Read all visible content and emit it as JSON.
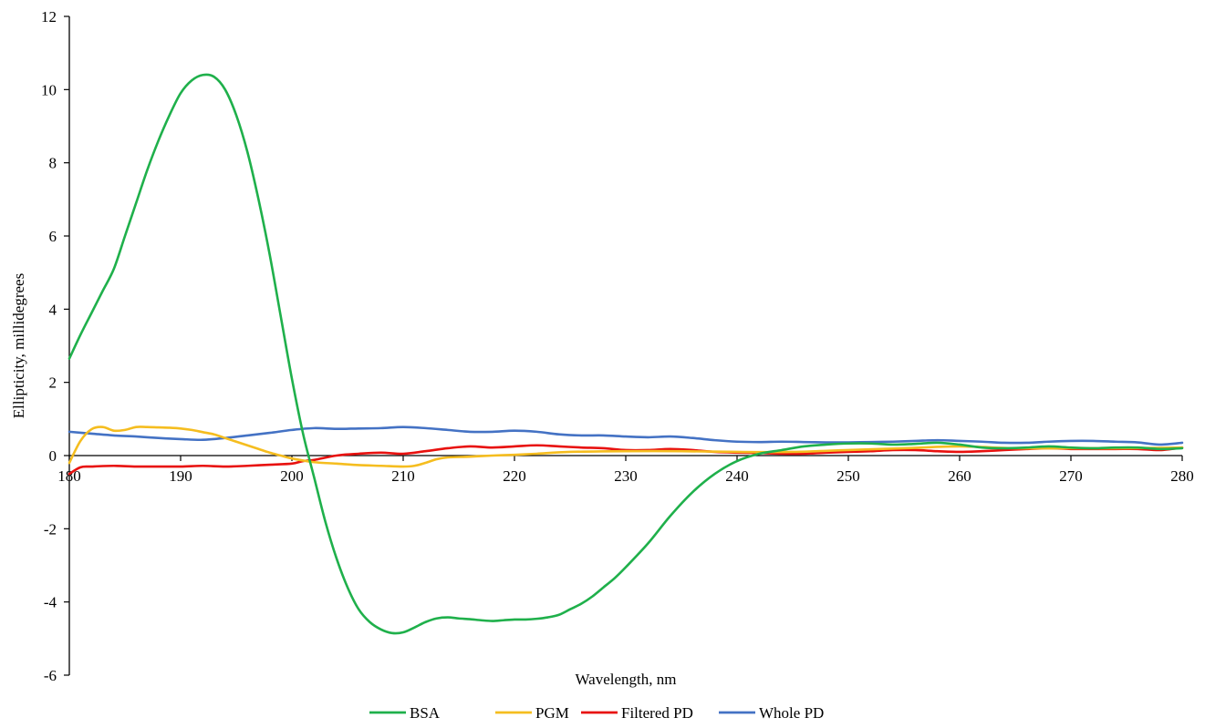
{
  "chart_data": {
    "type": "line",
    "xlabel": "Wavelength, nm",
    "ylabel": "Ellipticity, millidegrees",
    "xlim": [
      180,
      280
    ],
    "ylim": [
      -6,
      12
    ],
    "x_ticks": [
      180,
      190,
      200,
      210,
      220,
      230,
      240,
      250,
      260,
      270,
      280
    ],
    "y_ticks": [
      -6,
      -4,
      -2,
      0,
      2,
      4,
      6,
      8,
      10,
      12
    ],
    "grid": false,
    "legend_position": "bottom",
    "series": [
      {
        "name": "BSA",
        "color": "#1fb04b",
        "x": [
          180,
          181,
          182,
          183,
          184,
          185,
          186,
          187,
          188,
          189,
          190,
          191,
          192,
          193,
          194,
          195,
          196,
          197,
          198,
          199,
          200,
          201,
          202,
          203,
          204,
          205,
          206,
          207,
          208,
          209,
          210,
          211,
          212,
          213,
          214,
          215,
          216,
          217,
          218,
          219,
          220,
          221,
          222,
          223,
          224,
          225,
          226,
          227,
          228,
          229,
          230,
          232,
          234,
          236,
          238,
          240,
          242,
          244,
          246,
          248,
          250,
          252,
          254,
          256,
          258,
          260,
          262,
          264,
          266,
          268,
          270,
          272,
          274,
          276,
          278,
          280
        ],
        "y": [
          2.65,
          3.3,
          3.9,
          4.5,
          5.1,
          6.0,
          6.9,
          7.8,
          8.6,
          9.3,
          9.9,
          10.25,
          10.4,
          10.35,
          10.0,
          9.3,
          8.3,
          7.0,
          5.5,
          3.8,
          2.1,
          0.6,
          -0.6,
          -1.8,
          -2.8,
          -3.6,
          -4.2,
          -4.55,
          -4.75,
          -4.85,
          -4.83,
          -4.7,
          -4.55,
          -4.45,
          -4.42,
          -4.45,
          -4.47,
          -4.5,
          -4.52,
          -4.5,
          -4.48,
          -4.48,
          -4.46,
          -4.42,
          -4.35,
          -4.2,
          -4.05,
          -3.85,
          -3.6,
          -3.35,
          -3.05,
          -2.4,
          -1.65,
          -1.0,
          -0.5,
          -0.15,
          0.05,
          0.15,
          0.25,
          0.3,
          0.33,
          0.33,
          0.3,
          0.32,
          0.35,
          0.3,
          0.22,
          0.2,
          0.22,
          0.25,
          0.22,
          0.2,
          0.22,
          0.22,
          0.18,
          0.2
        ]
      },
      {
        "name": "PGM",
        "color": "#f5bd1f",
        "x": [
          180,
          181,
          182,
          183,
          184,
          185,
          186,
          187,
          188,
          189,
          190,
          191,
          192,
          193,
          194,
          195,
          196,
          197,
          198,
          199,
          200,
          202,
          204,
          206,
          208,
          210,
          211,
          212,
          213,
          214,
          216,
          218,
          220,
          222,
          225,
          230,
          235,
          240,
          245,
          250,
          255,
          260,
          265,
          270,
          275,
          280
        ],
        "y": [
          -0.2,
          0.4,
          0.72,
          0.78,
          0.68,
          0.7,
          0.78,
          0.78,
          0.77,
          0.76,
          0.74,
          0.7,
          0.64,
          0.58,
          0.48,
          0.38,
          0.28,
          0.18,
          0.08,
          0.0,
          -0.08,
          -0.18,
          -0.22,
          -0.26,
          -0.28,
          -0.3,
          -0.28,
          -0.2,
          -0.1,
          -0.05,
          -0.03,
          0.0,
          0.02,
          0.05,
          0.1,
          0.12,
          0.12,
          0.1,
          0.1,
          0.15,
          0.2,
          0.25,
          0.2,
          0.2,
          0.2,
          0.22
        ]
      },
      {
        "name": "Filtered PD",
        "color": "#e8110f",
        "x": [
          180,
          181,
          182,
          184,
          186,
          188,
          190,
          192,
          194,
          196,
          198,
          200,
          201,
          202,
          204,
          206,
          208,
          210,
          212,
          214,
          216,
          218,
          220,
          222,
          224,
          226,
          228,
          230,
          232,
          234,
          236,
          238,
          240,
          242,
          244,
          246,
          248,
          250,
          252,
          254,
          256,
          258,
          260,
          262,
          264,
          266,
          268,
          270,
          272,
          274,
          276,
          278,
          280
        ],
        "y": [
          -0.5,
          -0.32,
          -0.3,
          -0.28,
          -0.3,
          -0.3,
          -0.3,
          -0.28,
          -0.3,
          -0.28,
          -0.25,
          -0.22,
          -0.15,
          -0.12,
          0.0,
          0.05,
          0.08,
          0.05,
          0.12,
          0.2,
          0.25,
          0.22,
          0.25,
          0.28,
          0.25,
          0.22,
          0.2,
          0.15,
          0.15,
          0.18,
          0.15,
          0.1,
          0.08,
          0.07,
          0.05,
          0.05,
          0.08,
          0.1,
          0.12,
          0.15,
          0.15,
          0.12,
          0.1,
          0.12,
          0.15,
          0.18,
          0.2,
          0.18,
          0.18,
          0.18,
          0.18,
          0.15,
          0.22
        ]
      },
      {
        "name": "Whole PD",
        "color": "#4472c4",
        "x": [
          180,
          182,
          184,
          186,
          188,
          190,
          192,
          194,
          196,
          198,
          200,
          202,
          204,
          206,
          208,
          210,
          212,
          214,
          216,
          218,
          220,
          222,
          224,
          226,
          228,
          230,
          232,
          234,
          236,
          238,
          240,
          242,
          244,
          246,
          248,
          250,
          252,
          254,
          256,
          258,
          260,
          262,
          264,
          266,
          268,
          270,
          272,
          274,
          276,
          278,
          280
        ],
        "y": [
          0.65,
          0.6,
          0.55,
          0.52,
          0.48,
          0.45,
          0.43,
          0.48,
          0.55,
          0.62,
          0.7,
          0.75,
          0.73,
          0.74,
          0.75,
          0.78,
          0.75,
          0.7,
          0.65,
          0.65,
          0.68,
          0.65,
          0.58,
          0.55,
          0.55,
          0.52,
          0.5,
          0.52,
          0.48,
          0.42,
          0.38,
          0.37,
          0.38,
          0.37,
          0.36,
          0.36,
          0.37,
          0.38,
          0.4,
          0.42,
          0.4,
          0.38,
          0.35,
          0.35,
          0.38,
          0.4,
          0.4,
          0.38,
          0.36,
          0.3,
          0.35
        ]
      }
    ]
  }
}
